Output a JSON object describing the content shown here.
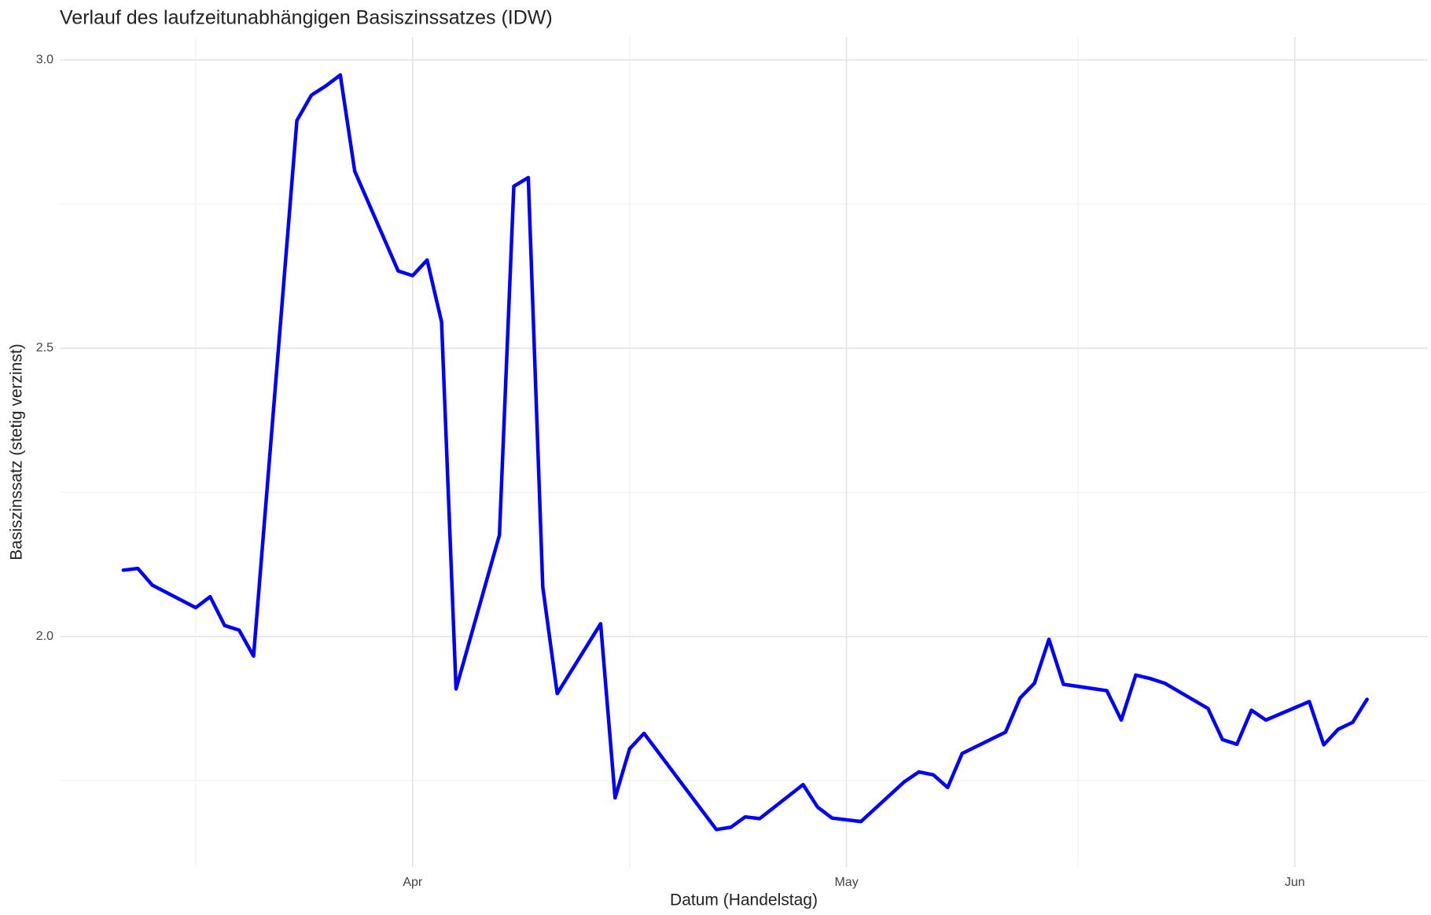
{
  "chart_data": {
    "type": "line",
    "title": "Verlauf des laufzeitunabhängigen Basiszinssatzes (IDW)",
    "x_label": "Datum (Handelstag)",
    "y_label": "Basiszinssatz (stetig verzinst)",
    "x": [
      71,
      72,
      73,
      76,
      77,
      78,
      79,
      80,
      83,
      84,
      85,
      86,
      87,
      90,
      91,
      92,
      93,
      94,
      97,
      98,
      99,
      100,
      101,
      104,
      105,
      106,
      107,
      112,
      113,
      114,
      115,
      118,
      119,
      120,
      122,
      125,
      126,
      127,
      128,
      129,
      132,
      133,
      134,
      135,
      136,
      139,
      140,
      141,
      142,
      143,
      146,
      147,
      148,
      149,
      150,
      153,
      154,
      155,
      156,
      157
    ],
    "values": [
      2.115,
      2.118,
      2.089,
      2.05,
      2.069,
      2.019,
      2.011,
      1.966,
      2.895,
      2.939,
      2.955,
      2.974,
      2.807,
      2.634,
      2.626,
      2.653,
      2.546,
      1.909,
      2.176,
      2.781,
      2.796,
      2.086,
      1.901,
      2.022,
      1.72,
      1.805,
      1.832,
      1.665,
      1.669,
      1.687,
      1.684,
      1.743,
      1.704,
      1.685,
      1.679,
      1.748,
      1.765,
      1.76,
      1.738,
      1.797,
      1.834,
      1.893,
      1.919,
      1.995,
      1.917,
      1.906,
      1.855,
      1.933,
      1.927,
      1.919,
      1.875,
      1.821,
      1.813,
      1.872,
      1.855,
      1.887,
      1.812,
      1.839,
      1.851,
      1.891
    ],
    "color": "#0000ff",
    "xlim": [
      66.6,
      161.2
    ],
    "xticks": [
      {
        "value": 91,
        "label": "Apr"
      },
      {
        "value": 121,
        "label": "May"
      },
      {
        "value": 152,
        "label": "Jun"
      }
    ],
    "ylim": [
      1.6,
      3.04
    ],
    "yticks": [
      {
        "value": 2,
        "label": "2.0"
      },
      {
        "value": 2.5,
        "label": "2.5"
      },
      {
        "value": 3,
        "label": "3.0"
      }
    ],
    "grid": true
  }
}
